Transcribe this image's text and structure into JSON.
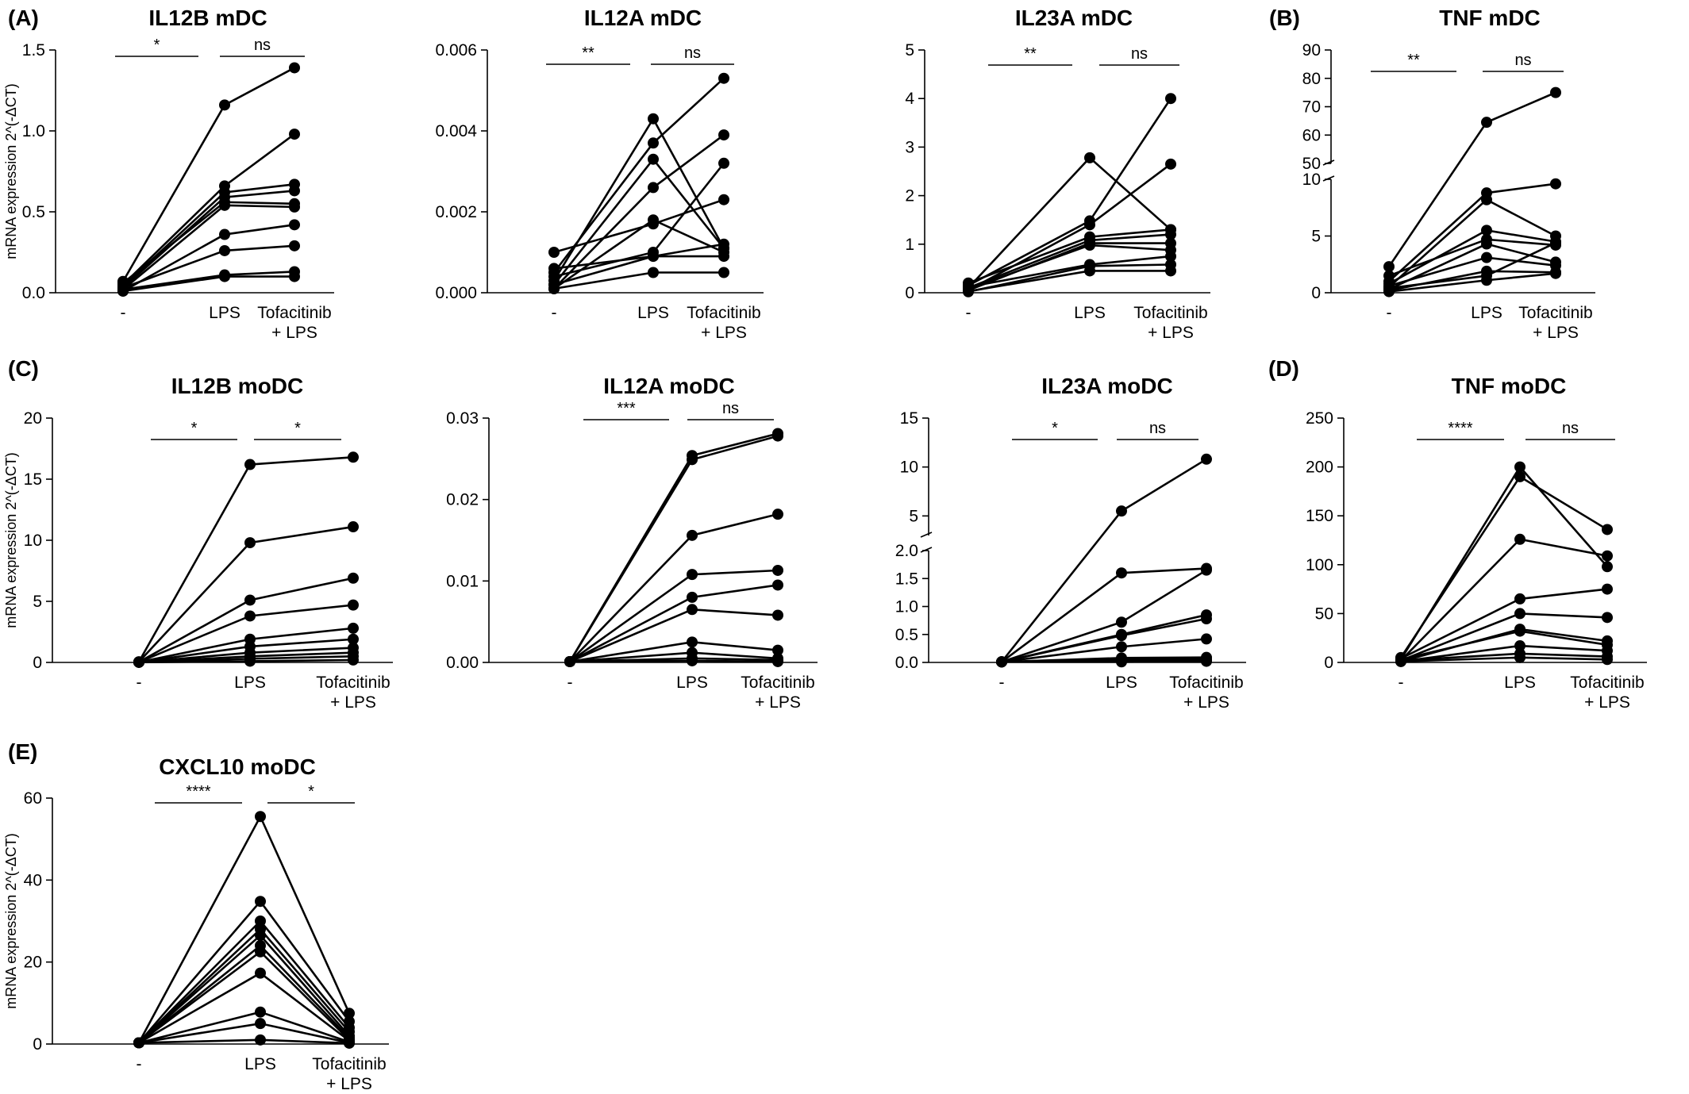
{
  "categories": [
    "-",
    "LPS",
    "Tofacitinib\n+ LPS"
  ],
  "ylabel": "mRNA expression 2^(-ΔCT)",
  "chart_data": [
    {
      "type": "line",
      "panel": "(A)",
      "title": "IL12B mDC",
      "ylabel": "mRNA expression 2^(-ΔCT)",
      "ylim": [
        0,
        1.5
      ],
      "ticks": [
        "0.0",
        "0.5",
        "1.0",
        "1.5"
      ],
      "tick_values": [
        0,
        0.5,
        1.0,
        1.5
      ],
      "significance": [
        "*",
        "ns"
      ],
      "series": [
        {
          "values": [
            0.07,
            1.16,
            1.39
          ]
        },
        {
          "values": [
            0.05,
            0.66,
            0.98
          ]
        },
        {
          "values": [
            0.04,
            0.62,
            0.67
          ]
        },
        {
          "values": [
            0.03,
            0.59,
            0.63
          ]
        },
        {
          "values": [
            0.06,
            0.56,
            0.55
          ]
        },
        {
          "values": [
            0.02,
            0.54,
            0.53
          ]
        },
        {
          "values": [
            0.01,
            0.36,
            0.42
          ]
        },
        {
          "values": [
            0.03,
            0.26,
            0.29
          ]
        },
        {
          "values": [
            0.02,
            0.11,
            0.13
          ]
        },
        {
          "values": [
            0.01,
            0.1,
            0.1
          ]
        }
      ]
    },
    {
      "type": "line",
      "panel": "",
      "title": "IL12A mDC",
      "ylim": [
        0,
        0.006
      ],
      "ticks": [
        "0.000",
        "0.002",
        "0.004",
        "0.006"
      ],
      "tick_values": [
        0,
        0.002,
        0.004,
        0.006
      ],
      "significance": [
        "**",
        "ns"
      ],
      "series": [
        {
          "values": [
            0.0003,
            0.0043,
            0.0011
          ]
        },
        {
          "values": [
            0.0005,
            0.0037,
            0.0053
          ]
        },
        {
          "values": [
            0.0002,
            0.0033,
            0.0011
          ]
        },
        {
          "values": [
            0.0001,
            0.0026,
            0.0039
          ]
        },
        {
          "values": [
            0.0001,
            0.0018,
            0.001
          ]
        },
        {
          "values": [
            0.001,
            0.0017,
            0.0023
          ]
        },
        {
          "values": [
            0.0004,
            0.001,
            0.0032
          ]
        },
        {
          "values": [
            0.0006,
            0.0009,
            0.0012
          ]
        },
        {
          "values": [
            0.0002,
            0.0009,
            0.0009
          ]
        },
        {
          "values": [
            0.0001,
            0.0005,
            0.0005
          ]
        }
      ]
    },
    {
      "type": "line",
      "panel": "",
      "title": "IL23A mDC",
      "ylim": [
        0,
        5
      ],
      "ticks": [
        "0",
        "1",
        "2",
        "3",
        "4",
        "5"
      ],
      "tick_values": [
        0,
        1,
        2,
        3,
        4,
        5
      ],
      "significance": [
        "**",
        "ns"
      ],
      "series": [
        {
          "values": [
            0.1,
            2.78,
            1.3
          ]
        },
        {
          "values": [
            0.15,
            1.48,
            4.0
          ]
        },
        {
          "values": [
            0.05,
            1.4,
            2.65
          ]
        },
        {
          "values": [
            0.2,
            1.15,
            1.3
          ]
        },
        {
          "values": [
            0.1,
            1.08,
            1.2
          ]
        },
        {
          "values": [
            0.05,
            1.02,
            1.02
          ]
        },
        {
          "values": [
            0.08,
            0.98,
            0.88
          ]
        },
        {
          "values": [
            0.12,
            0.58,
            0.75
          ]
        },
        {
          "values": [
            0.02,
            0.55,
            0.58
          ]
        },
        {
          "values": [
            0.03,
            0.45,
            0.45
          ]
        }
      ]
    },
    {
      "type": "line",
      "panel": "(B)",
      "title": "TNF mDC",
      "broken_axis": true,
      "ylim": [
        0,
        90
      ],
      "axis_break": [
        10,
        50
      ],
      "ticks": [
        "0",
        "5",
        "10",
        "50",
        "60",
        "70",
        "80",
        "90"
      ],
      "tick_values": [
        0,
        5,
        10,
        50,
        60,
        70,
        80,
        90
      ],
      "significance": [
        "**",
        "ns"
      ],
      "series": [
        {
          "values": [
            2.3,
            64.5,
            75.0
          ]
        },
        {
          "values": [
            1.0,
            8.8,
            9.6
          ]
        },
        {
          "values": [
            0.5,
            8.2,
            5.0
          ]
        },
        {
          "values": [
            0.8,
            5.5,
            4.5
          ]
        },
        {
          "values": [
            1.5,
            4.7,
            4.2
          ]
        },
        {
          "values": [
            0.3,
            4.3,
            2.7
          ]
        },
        {
          "values": [
            0.6,
            3.1,
            2.4
          ]
        },
        {
          "values": [
            0.2,
            1.9,
            1.8
          ]
        },
        {
          "values": [
            0.4,
            1.5,
            4.4
          ]
        },
        {
          "values": [
            0.1,
            1.1,
            1.7
          ]
        }
      ]
    },
    {
      "type": "line",
      "panel": "(C)",
      "title": "IL12B moDC",
      "ylim": [
        0,
        20
      ],
      "ticks": [
        "0",
        "5",
        "10",
        "15",
        "20"
      ],
      "tick_values": [
        0,
        5,
        10,
        15,
        20
      ],
      "significance": [
        "*",
        "*"
      ],
      "series": [
        {
          "values": [
            0.05,
            16.2,
            16.8
          ]
        },
        {
          "values": [
            0.05,
            9.8,
            11.1
          ]
        },
        {
          "values": [
            0.03,
            5.1,
            6.9
          ]
        },
        {
          "values": [
            0.03,
            3.8,
            4.7
          ]
        },
        {
          "values": [
            0.02,
            1.9,
            2.8
          ]
        },
        {
          "values": [
            0.02,
            1.3,
            1.9
          ]
        },
        {
          "values": [
            0.01,
            0.8,
            1.2
          ]
        },
        {
          "values": [
            0.01,
            0.5,
            0.8
          ]
        },
        {
          "values": [
            0.01,
            0.3,
            0.5
          ]
        },
        {
          "values": [
            0.01,
            0.1,
            0.2
          ]
        }
      ]
    },
    {
      "type": "line",
      "panel": "",
      "title": "IL12A moDC",
      "ylim": [
        0,
        0.03
      ],
      "ticks": [
        "0.00",
        "0.01",
        "0.02",
        "0.03"
      ],
      "tick_values": [
        0,
        0.01,
        0.02,
        0.03
      ],
      "significance": [
        "***",
        "ns"
      ],
      "series": [
        {
          "values": [
            0.0001,
            0.0254,
            0.0281
          ]
        },
        {
          "values": [
            0.0001,
            0.0249,
            0.0278
          ]
        },
        {
          "values": [
            0.0001,
            0.0156,
            0.0182
          ]
        },
        {
          "values": [
            0.0001,
            0.0108,
            0.0113
          ]
        },
        {
          "values": [
            0.0001,
            0.008,
            0.0095
          ]
        },
        {
          "values": [
            0.0001,
            0.0065,
            0.0058
          ]
        },
        {
          "values": [
            0.0001,
            0.0025,
            0.0015
          ]
        },
        {
          "values": [
            0.0001,
            0.0012,
            0.0005
          ]
        },
        {
          "values": [
            0.0001,
            0.0005,
            0.0003
          ]
        },
        {
          "values": [
            0.0001,
            0.0002,
            0.0001
          ]
        }
      ]
    },
    {
      "type": "line",
      "panel": "",
      "title": "IL23A moDC",
      "broken_axis": true,
      "ylim": [
        0,
        15
      ],
      "axis_break": [
        2.0,
        3.0
      ],
      "ticks": [
        "0.0",
        "0.5",
        "1.0",
        "1.5",
        "2.0",
        "5",
        "10",
        "15"
      ],
      "tick_values": [
        0,
        0.5,
        1.0,
        1.5,
        2.0,
        5,
        10,
        15
      ],
      "significance": [
        "*",
        "ns"
      ],
      "series": [
        {
          "values": [
            0.01,
            5.5,
            10.8
          ]
        },
        {
          "values": [
            0.01,
            1.6,
            1.68
          ]
        },
        {
          "values": [
            0.01,
            0.72,
            1.65
          ]
        },
        {
          "values": [
            0.01,
            0.5,
            0.85
          ]
        },
        {
          "values": [
            0.01,
            0.48,
            0.78
          ]
        },
        {
          "values": [
            0.01,
            0.28,
            0.42
          ]
        },
        {
          "values": [
            0.01,
            0.08,
            0.09
          ]
        },
        {
          "values": [
            0.01,
            0.05,
            0.06
          ]
        },
        {
          "values": [
            0.01,
            0.03,
            0.03
          ]
        },
        {
          "values": [
            0.01,
            0.01,
            0.02
          ]
        }
      ]
    },
    {
      "type": "line",
      "panel": "(D)",
      "title": "TNF moDC",
      "ylim": [
        0,
        250
      ],
      "ticks": [
        "0",
        "50",
        "100",
        "150",
        "200",
        "250"
      ],
      "tick_values": [
        0,
        50,
        100,
        150,
        200,
        250
      ],
      "significance": [
        "****",
        "ns"
      ],
      "series": [
        {
          "values": [
            3,
            200,
            98
          ]
        },
        {
          "values": [
            5,
            190,
            136
          ]
        },
        {
          "values": [
            2,
            126,
            109
          ]
        },
        {
          "values": [
            4,
            65,
            75
          ]
        },
        {
          "values": [
            2,
            50,
            46
          ]
        },
        {
          "values": [
            1,
            34,
            22
          ]
        },
        {
          "values": [
            3,
            32,
            18
          ]
        },
        {
          "values": [
            1,
            17,
            12
          ]
        },
        {
          "values": [
            2,
            9,
            6
          ]
        },
        {
          "values": [
            1,
            5,
            3
          ]
        }
      ]
    },
    {
      "type": "line",
      "panel": "(E)",
      "title": "CXCL10 moDC",
      "ylabel": "mRNA expression 2^(-ΔCT)",
      "ylim": [
        0,
        60
      ],
      "ticks": [
        "0",
        "20",
        "40",
        "60"
      ],
      "tick_values": [
        0,
        20,
        40,
        60
      ],
      "significance": [
        "****",
        "*"
      ],
      "series": [
        {
          "values": [
            0.3,
            55.5,
            7.5
          ]
        },
        {
          "values": [
            0.3,
            34.8,
            5.5
          ]
        },
        {
          "values": [
            0.3,
            30.0,
            4.0
          ]
        },
        {
          "values": [
            0.3,
            28.0,
            3.0
          ]
        },
        {
          "values": [
            0.3,
            26.5,
            2.0
          ]
        },
        {
          "values": [
            0.3,
            24.0,
            1.5
          ]
        },
        {
          "values": [
            0.3,
            22.5,
            1.0
          ]
        },
        {
          "values": [
            0.3,
            17.3,
            0.8
          ]
        },
        {
          "values": [
            0.3,
            7.8,
            0.5
          ]
        },
        {
          "values": [
            0.3,
            5.0,
            0.3
          ]
        },
        {
          "values": [
            0.3,
            1.0,
            0.2
          ]
        }
      ]
    }
  ]
}
